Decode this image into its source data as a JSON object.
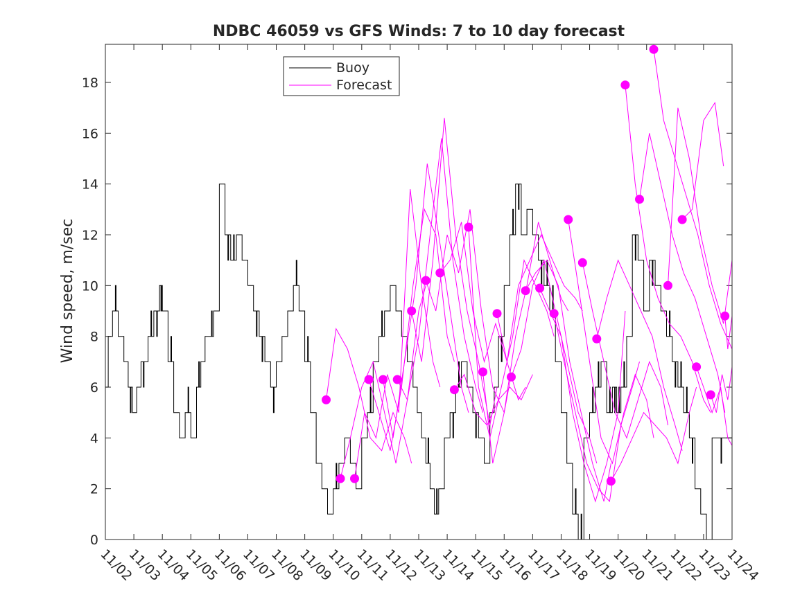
{
  "chart_data": {
    "type": "line",
    "title": "NDBC 46059 vs GFS Winds: 7 to 10 day forecast",
    "xlabel": "",
    "ylabel": "Wind speed, m/sec",
    "xlim": [
      0,
      22
    ],
    "ylim": [
      0,
      19.5
    ],
    "x_tick_labels": [
      "11/02",
      "11/03",
      "11/04",
      "11/05",
      "11/06",
      "11/07",
      "11/08",
      "11/09",
      "11/10",
      "11/11",
      "11/12",
      "11/13",
      "11/14",
      "11/15",
      "11/16",
      "11/17",
      "11/18",
      "11/19",
      "11/20",
      "11/21",
      "11/22",
      "11/23",
      "11/24"
    ],
    "y_ticks": [
      0,
      2,
      4,
      6,
      8,
      10,
      12,
      14,
      16,
      18
    ],
    "legend": {
      "position": "top-center",
      "entries": [
        "Buoy",
        "Forecast"
      ]
    },
    "colors": {
      "buoy": "#000000",
      "forecast": "#ff00ff",
      "axes": "#262626"
    },
    "series": [
      {
        "name": "Buoy",
        "color": "#000000",
        "x": [
          0,
          0.1,
          0.25,
          0.45,
          0.65,
          0.8,
          0.95,
          1.1,
          1.25,
          1.5,
          1.7,
          1.9,
          2.0,
          2.2,
          2.4,
          2.6,
          2.8,
          3.0,
          3.2,
          3.35,
          3.5,
          3.65,
          3.8,
          4.0,
          4.2,
          4.4,
          4.6,
          4.8,
          5.0,
          5.2,
          5.4,
          5.6,
          5.8,
          6.0,
          6.2,
          6.4,
          6.6,
          6.8,
          7.0,
          7.2,
          7.4,
          7.6,
          7.8,
          8.0,
          8.2,
          8.4,
          8.6,
          8.8,
          9.0,
          9.2,
          9.4,
          9.6,
          9.8,
          10.0,
          10.2,
          10.4,
          10.6,
          10.8,
          10.95,
          11.1,
          11.25,
          11.4,
          11.55,
          11.7,
          11.9,
          12.1,
          12.3,
          12.5,
          12.7,
          12.9,
          13.1,
          13.3,
          13.5,
          13.65,
          13.8,
          14.0,
          14.2,
          14.4,
          14.6,
          14.8,
          15.0,
          15.2,
          15.4,
          15.6,
          15.8,
          16.0,
          16.2,
          16.4,
          16.6,
          16.8,
          17.0,
          17.2,
          17.4,
          17.6,
          17.8,
          17.95,
          18.1,
          18.3,
          18.5,
          18.7,
          18.9,
          19.1,
          19.3,
          19.5,
          19.7,
          19.9,
          20.1,
          20.3,
          20.5,
          20.7,
          20.9,
          21.1,
          21.3
        ],
        "y": [
          6,
          8,
          9,
          8,
          7,
          6,
          5,
          6,
          7,
          8,
          9,
          10,
          9,
          7,
          5,
          4,
          5,
          4,
          6,
          7,
          8,
          8,
          9,
          14,
          12,
          11,
          12,
          11,
          10,
          9,
          8,
          7,
          6,
          7,
          8,
          9,
          10,
          9,
          7,
          5,
          3,
          2,
          1,
          2,
          3,
          4,
          3,
          2,
          4,
          5,
          7,
          8,
          9,
          10,
          9,
          8,
          7,
          6,
          5,
          4,
          3,
          2,
          1,
          2,
          4,
          5,
          6,
          7,
          6,
          5,
          4,
          3,
          5,
          6,
          8,
          10,
          12,
          14,
          12,
          13,
          12,
          11,
          10,
          9,
          7,
          5,
          3,
          1,
          0,
          4,
          5,
          6,
          7,
          5,
          6,
          5,
          6,
          8,
          12,
          11,
          9,
          11,
          10,
          9,
          8,
          7,
          6,
          5,
          4,
          2,
          1,
          0,
          4
        ]
      },
      {
        "name": "Forecast",
        "color": "#ff00ff",
        "markers": [
          {
            "x": 7.75,
            "y": 5.5
          },
          {
            "x": 8.25,
            "y": 2.4
          },
          {
            "x": 8.75,
            "y": 2.4
          },
          {
            "x": 9.25,
            "y": 6.3
          },
          {
            "x": 9.75,
            "y": 6.3
          },
          {
            "x": 10.25,
            "y": 6.3
          },
          {
            "x": 10.75,
            "y": 9.0
          },
          {
            "x": 11.25,
            "y": 10.2
          },
          {
            "x": 11.75,
            "y": 10.5
          },
          {
            "x": 12.25,
            "y": 5.9
          },
          {
            "x": 12.75,
            "y": 12.3
          },
          {
            "x": 13.25,
            "y": 6.6
          },
          {
            "x": 13.75,
            "y": 8.9
          },
          {
            "x": 14.25,
            "y": 6.4
          },
          {
            "x": 14.75,
            "y": 9.8
          },
          {
            "x": 15.25,
            "y": 9.9
          },
          {
            "x": 15.75,
            "y": 8.9
          },
          {
            "x": 16.25,
            "y": 12.6
          },
          {
            "x": 16.75,
            "y": 10.9
          },
          {
            "x": 17.25,
            "y": 7.9
          },
          {
            "x": 17.75,
            "y": 2.3
          },
          {
            "x": 18.25,
            "y": 17.9
          },
          {
            "x": 18.75,
            "y": 13.4
          },
          {
            "x": 19.25,
            "y": 19.3
          },
          {
            "x": 19.75,
            "y": 10.0
          },
          {
            "x": 20.25,
            "y": 12.6
          },
          {
            "x": 20.75,
            "y": 6.8
          },
          {
            "x": 21.25,
            "y": 5.7
          },
          {
            "x": 21.75,
            "y": 8.8
          }
        ],
        "traces": [
          {
            "x": [
              7.75,
              8.1,
              8.5,
              8.9,
              9.3,
              9.7,
              10.1,
              10.5,
              10.75
            ],
            "y": [
              5.5,
              8.3,
              7.5,
              6.0,
              4.0,
              3.5,
              5.0,
              4.0,
              3.0
            ]
          },
          {
            "x": [
              8.25,
              8.6,
              9.0,
              9.4,
              9.8,
              10.2,
              10.6,
              11.0,
              11.25
            ],
            "y": [
              2.4,
              4.0,
              6.0,
              7.0,
              5.0,
              3.0,
              5.5,
              9.0,
              10.0
            ]
          },
          {
            "x": [
              8.75,
              9.1,
              9.5,
              9.9,
              10.3,
              10.7,
              11.1,
              11.5,
              11.75
            ],
            "y": [
              2.4,
              5.0,
              4.0,
              6.5,
              5.0,
              13.8,
              10.0,
              7.0,
              6.0
            ]
          },
          {
            "x": [
              9.25,
              9.6,
              10.0,
              10.4,
              10.8,
              11.2,
              11.6,
              12.0,
              12.25
            ],
            "y": [
              6.3,
              5.0,
              3.5,
              6.0,
              10.0,
              13.0,
              12.0,
              8.0,
              7.0
            ]
          },
          {
            "x": [
              9.75,
              10.1,
              10.5,
              10.9,
              11.3,
              11.7,
              12.1,
              12.5,
              12.75
            ],
            "y": [
              6.3,
              4.0,
              7.0,
              10.0,
              14.8,
              12.0,
              9.0,
              6.0,
              5.0
            ]
          },
          {
            "x": [
              10.25,
              10.6,
              11.0,
              11.4,
              11.8,
              12.2,
              12.6,
              13.0,
              13.25
            ],
            "y": [
              6.3,
              5.5,
              8.0,
              12.0,
              15.8,
              11.0,
              8.0,
              6.0,
              5.0
            ]
          },
          {
            "x": [
              10.75,
              11.1,
              11.5,
              11.9,
              12.3,
              12.7,
              13.1,
              13.5,
              13.75
            ],
            "y": [
              9.0,
              7.0,
              11.0,
              16.6,
              12.0,
              9.0,
              7.0,
              4.5,
              6.0
            ]
          },
          {
            "x": [
              11.25,
              11.6,
              12.0,
              12.4,
              12.8,
              13.2,
              13.6,
              14.0,
              14.25
            ],
            "y": [
              10.2,
              9.0,
              12.0,
              10.5,
              13.0,
              9.0,
              6.0,
              5.0,
              6.5
            ]
          },
          {
            "x": [
              11.75,
              12.1,
              12.5,
              12.9,
              13.3,
              13.7,
              14.1,
              14.5,
              14.75
            ],
            "y": [
              10.5,
              11.0,
              12.5,
              9.0,
              7.0,
              8.5,
              7.0,
              5.5,
              6.0
            ]
          },
          {
            "x": [
              12.25,
              12.6,
              13.0,
              13.4,
              13.8,
              14.2,
              14.6,
              15.0
            ],
            "y": [
              5.9,
              6.5,
              5.0,
              4.5,
              5.5,
              6.0,
              5.5,
              6.5
            ]
          },
          {
            "x": [
              12.75,
              13.1,
              13.5,
              13.9,
              14.3,
              14.7,
              15.1,
              15.5,
              15.75
            ],
            "y": [
              12.3,
              6.0,
              4.0,
              6.0,
              8.0,
              11.0,
              10.0,
              9.0,
              8.0
            ]
          },
          {
            "x": [
              13.25,
              13.6,
              14.0,
              14.4,
              14.8,
              15.2,
              15.6,
              16.0,
              16.25
            ],
            "y": [
              6.6,
              3.0,
              5.0,
              8.0,
              10.0,
              12.5,
              11.0,
              9.5,
              9.0
            ]
          },
          {
            "x": [
              13.75,
              14.1,
              14.5,
              14.9,
              15.3,
              15.7,
              16.1,
              16.5,
              16.75
            ],
            "y": [
              8.9,
              7.0,
              10.0,
              11.0,
              12.0,
              11.0,
              10.0,
              9.5,
              9.0
            ]
          },
          {
            "x": [
              14.25,
              14.6,
              15.0,
              15.4,
              15.8,
              16.2,
              16.6,
              17.0,
              17.25
            ],
            "y": [
              6.4,
              7.5,
              10.0,
              11.0,
              9.0,
              7.0,
              5.0,
              4.0,
              3.0
            ]
          },
          {
            "x": [
              14.75,
              15.1,
              15.5,
              15.9,
              16.3,
              16.7,
              17.1,
              17.5,
              17.75
            ],
            "y": [
              9.8,
              10.5,
              11.0,
              10.0,
              7.0,
              5.0,
              3.0,
              1.5,
              3.0
            ]
          },
          {
            "x": [
              15.25,
              15.6,
              16.0,
              16.4,
              16.8,
              17.2,
              17.6,
              18.0,
              18.25
            ],
            "y": [
              9.9,
              9.0,
              8.0,
              5.0,
              3.0,
              1.5,
              3.0,
              5.0,
              9.0
            ]
          },
          {
            "x": [
              15.75,
              16.1,
              16.5,
              16.9,
              17.3,
              17.7,
              18.1,
              18.5,
              18.75
            ],
            "y": [
              8.9,
              7.0,
              5.0,
              3.0,
              2.0,
              1.5,
              4.5,
              6.0,
              7.0
            ]
          },
          {
            "x": [
              16.25,
              16.6,
              17.0,
              17.4,
              17.8,
              18.2,
              18.6,
              19.0,
              19.25
            ],
            "y": [
              12.6,
              10.0,
              7.0,
              4.0,
              3.0,
              5.0,
              6.5,
              5.5,
              4.0
            ]
          },
          {
            "x": [
              16.75,
              17.1,
              17.5,
              17.9,
              18.3,
              18.7,
              19.1,
              19.5,
              19.75
            ],
            "y": [
              10.9,
              9.0,
              7.0,
              5.0,
              4.0,
              5.5,
              7.0,
              6.0,
              4.5
            ]
          },
          {
            "x": [
              17.25,
              17.6,
              18.0,
              18.4,
              18.8,
              19.2,
              19.6,
              20.0,
              20.25
            ],
            "y": [
              7.9,
              9.5,
              11.0,
              10.0,
              9.0,
              8.0,
              6.0,
              4.5,
              3.5
            ]
          },
          {
            "x": [
              17.75,
              18.1,
              18.5,
              18.9,
              19.3,
              19.7,
              20.1,
              20.5,
              20.75
            ],
            "y": [
              2.3,
              3.0,
              4.0,
              5.0,
              4.5,
              4.0,
              3.0,
              5.0,
              6.0
            ]
          },
          {
            "x": [
              18.25,
              18.6,
              19.0,
              19.4,
              19.8,
              20.2,
              20.6,
              21.0,
              21.25
            ],
            "y": [
              17.9,
              14.0,
              11.0,
              9.5,
              8.5,
              8.0,
              7.0,
              5.5,
              5.0
            ]
          },
          {
            "x": [
              18.75,
              19.1,
              19.5,
              19.9,
              20.3,
              20.7,
              21.1,
              21.5,
              21.75
            ],
            "y": [
              13.4,
              16.0,
              14.0,
              12.0,
              10.5,
              9.5,
              8.0,
              6.5,
              5.0
            ]
          },
          {
            "x": [
              19.25,
              19.6,
              20.0,
              20.4,
              20.8,
              21.2,
              21.6,
              22.0
            ],
            "y": [
              19.3,
              16.5,
              15.0,
              13.5,
              12.0,
              10.0,
              8.5,
              7.5
            ]
          },
          {
            "x": [
              19.75,
              20.1,
              20.5,
              20.9,
              21.3,
              21.7,
              22.0
            ],
            "y": [
              10.0,
              17.0,
              15.0,
              12.0,
              10.0,
              8.5,
              11.0
            ]
          },
          {
            "x": [
              20.25,
              20.6,
              21.0,
              21.4,
              21.7
            ],
            "y": [
              12.6,
              13.0,
              16.5,
              17.2,
              14.7
            ]
          },
          {
            "x": [
              20.75,
              21.0,
              21.3,
              21.6,
              21.85,
              22.0
            ],
            "y": [
              6.8,
              6.0,
              5.0,
              6.0,
              4.0,
              3.7
            ]
          },
          {
            "x": [
              21.25,
              21.45,
              21.65,
              21.85,
              22.0
            ],
            "y": [
              5.7,
              5.0,
              6.5,
              5.5,
              6.8
            ]
          },
          {
            "x": [
              21.75,
              21.85,
              22.0
            ],
            "y": [
              8.8,
              7.5,
              8.8
            ]
          }
        ]
      }
    ]
  }
}
